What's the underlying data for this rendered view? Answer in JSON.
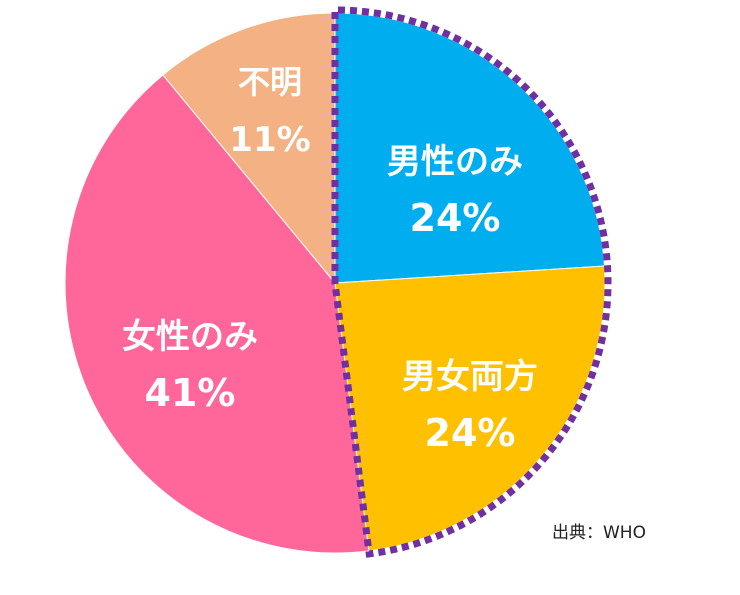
{
  "chart_data": {
    "type": "pie",
    "start_angle_deg": 0,
    "direction": "clockwise",
    "slices": [
      {
        "label": "男性のみ",
        "value": 24,
        "value_label": "24%",
        "color": "#00aeef"
      },
      {
        "label": "男女両方",
        "value": 24,
        "value_label": "24%",
        "color": "#ffc000"
      },
      {
        "label": "女性のみ",
        "value": 41,
        "value_label": "41%",
        "color": "#ff6699"
      },
      {
        "label": "不明",
        "value": 11,
        "value_label": "11%",
        "color": "#f4b183"
      }
    ],
    "highlight": {
      "slices": [
        "男性のみ",
        "男女両方"
      ],
      "style": "dotted outline",
      "color": "#7030a0"
    }
  },
  "source": "出典：WHO"
}
